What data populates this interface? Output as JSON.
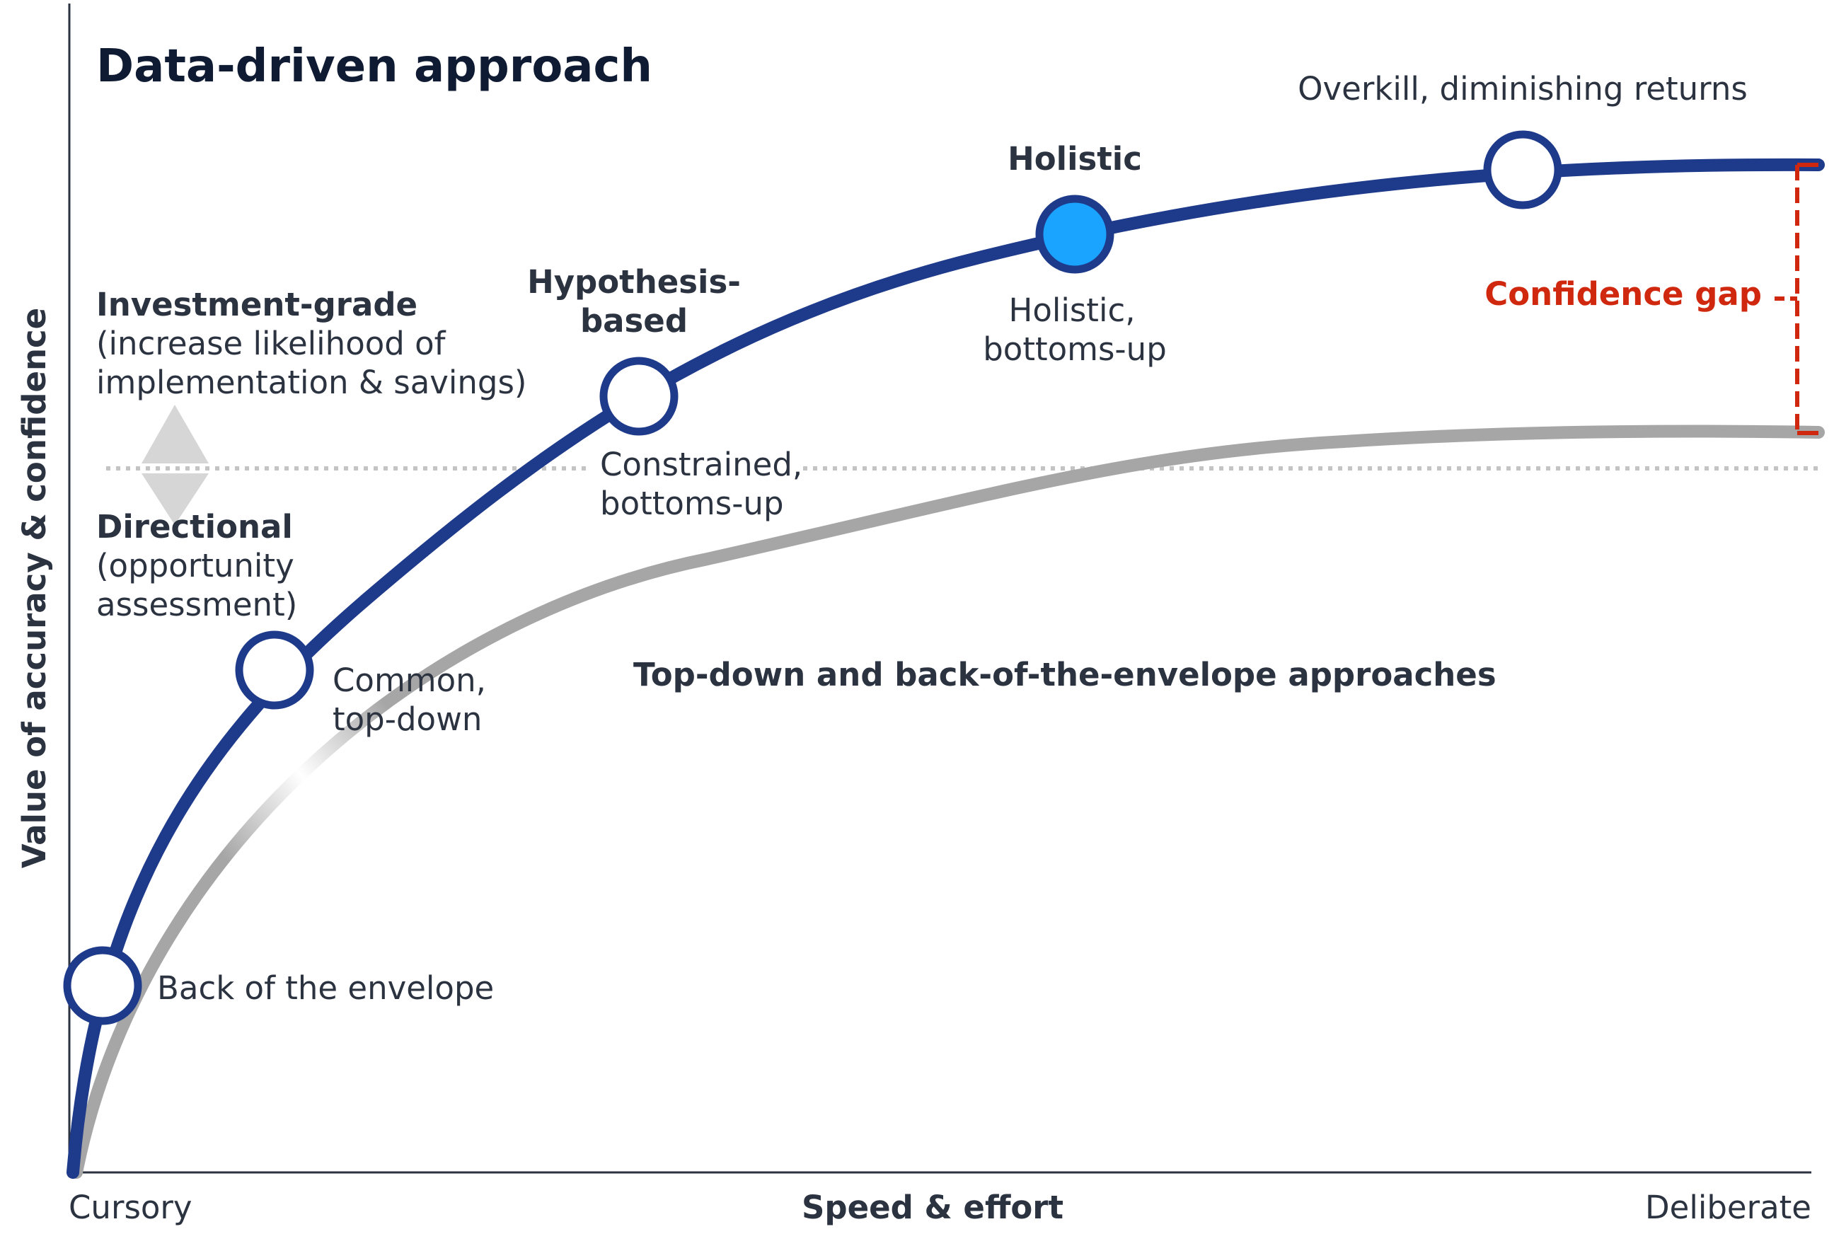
{
  "title": "Data-driven approach",
  "y_axis_label": "Value of accuracy &  confidence",
  "x_axis": {
    "label": "Speed & effort",
    "left_label": "Cursory",
    "right_label": "Deliberate"
  },
  "threshold_labels": {
    "upper_title": "Investment-grade",
    "upper_line1": "(increase likelihood of",
    "upper_line2": "implementation & savings)",
    "lower_title": "Directional",
    "lower_line1": "(opportunity",
    "lower_line2": "assessment)"
  },
  "points": {
    "envelope": "Back of the envelope",
    "common_1": "Common,",
    "common_2": "top-down",
    "hypothesis_1": "Hypothesis-",
    "hypothesis_2": "based",
    "constrained_1": "Constrained,",
    "constrained_2": "bottoms-up",
    "holistic_title": "Holistic",
    "holistic_1": "Holistic,",
    "holistic_2": "bottoms-up",
    "overkill": "Overkill, diminishing returns"
  },
  "gray_curve_label": "Top-down and back-of-the-envelope approaches",
  "confidence_gap": "Confidence gap",
  "colors": {
    "blue_curve": "#1e3a8a",
    "gray_curve": "#a6a6a6",
    "highlight_node": "#1aa3ff",
    "gap": "#d0280e",
    "text": "#2b3240"
  }
}
